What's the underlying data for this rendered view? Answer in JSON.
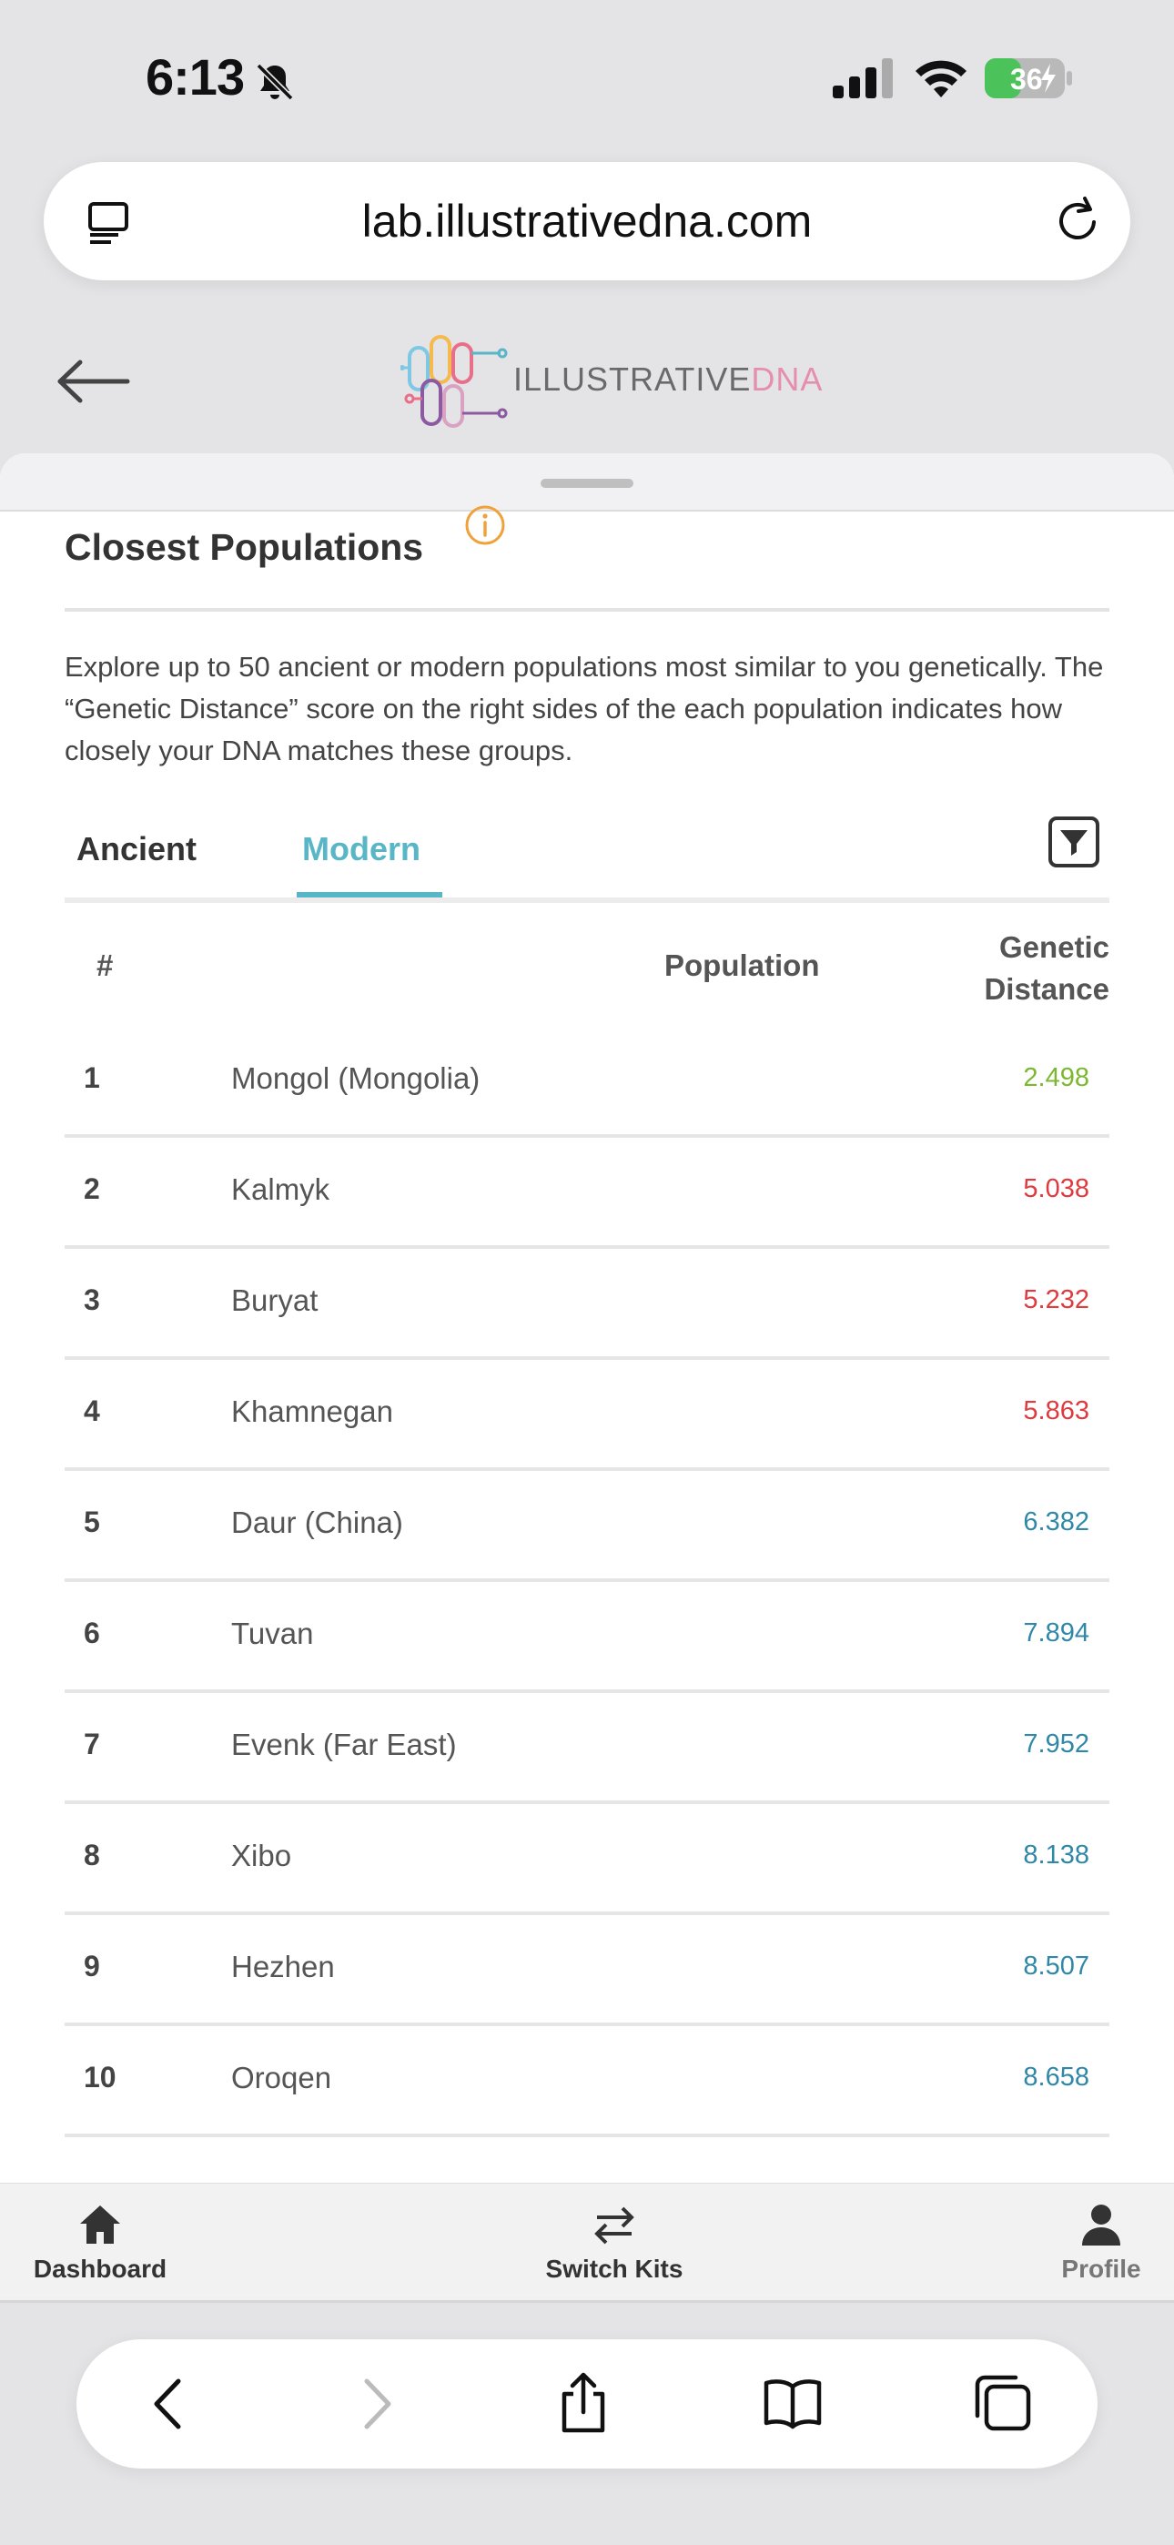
{
  "status_bar": {
    "time": "6:13",
    "battery": "36"
  },
  "url_bar": {
    "url": "lab.illustrativedna.com"
  },
  "site": {
    "logo_text_main": "ILLUSTRATIVE",
    "logo_text_accent": "DNA"
  },
  "section": {
    "title": "Closest Populations",
    "description": "Explore up to 50 ancient or modern populations most similar to you genetically. The “Genetic Distance” score on the right sides of the each population indicates how closely your DNA matches these groups."
  },
  "tabs": [
    {
      "label": "Ancient",
      "active": false
    },
    {
      "label": "Modern",
      "active": true
    }
  ],
  "table": {
    "headers": {
      "num": "#",
      "population": "Population",
      "distance_line1": "Genetic",
      "distance_line2": "Distance"
    },
    "rows": [
      {
        "rank": "1",
        "name": "Mongol (Mongolia)",
        "distance": "2.498",
        "color": "#7cb82f"
      },
      {
        "rank": "2",
        "name": "Kalmyk",
        "distance": "5.038",
        "color": "#e0393e"
      },
      {
        "rank": "3",
        "name": "Buryat",
        "distance": "5.232",
        "color": "#e0393e"
      },
      {
        "rank": "4",
        "name": "Khamnegan",
        "distance": "5.863",
        "color": "#e0393e"
      },
      {
        "rank": "5",
        "name": "Daur (China)",
        "distance": "6.382",
        "color": "#2f88a8"
      },
      {
        "rank": "6",
        "name": "Tuvan",
        "distance": "7.894",
        "color": "#2f88a8"
      },
      {
        "rank": "7",
        "name": "Evenk (Far East)",
        "distance": "7.952",
        "color": "#2f88a8"
      },
      {
        "rank": "8",
        "name": "Xibo",
        "distance": "8.138",
        "color": "#2f88a8"
      },
      {
        "rank": "9",
        "name": "Hezhen",
        "distance": "8.507",
        "color": "#2f88a8"
      },
      {
        "rank": "10",
        "name": "Oroqen",
        "distance": "8.658",
        "color": "#2f88a8"
      }
    ]
  },
  "app_nav": {
    "dashboard": "Dashboard",
    "switch_kits": "Switch Kits",
    "profile": "Profile"
  },
  "colors": {
    "accent": "#58b6c7",
    "info": "#f0a23a"
  }
}
